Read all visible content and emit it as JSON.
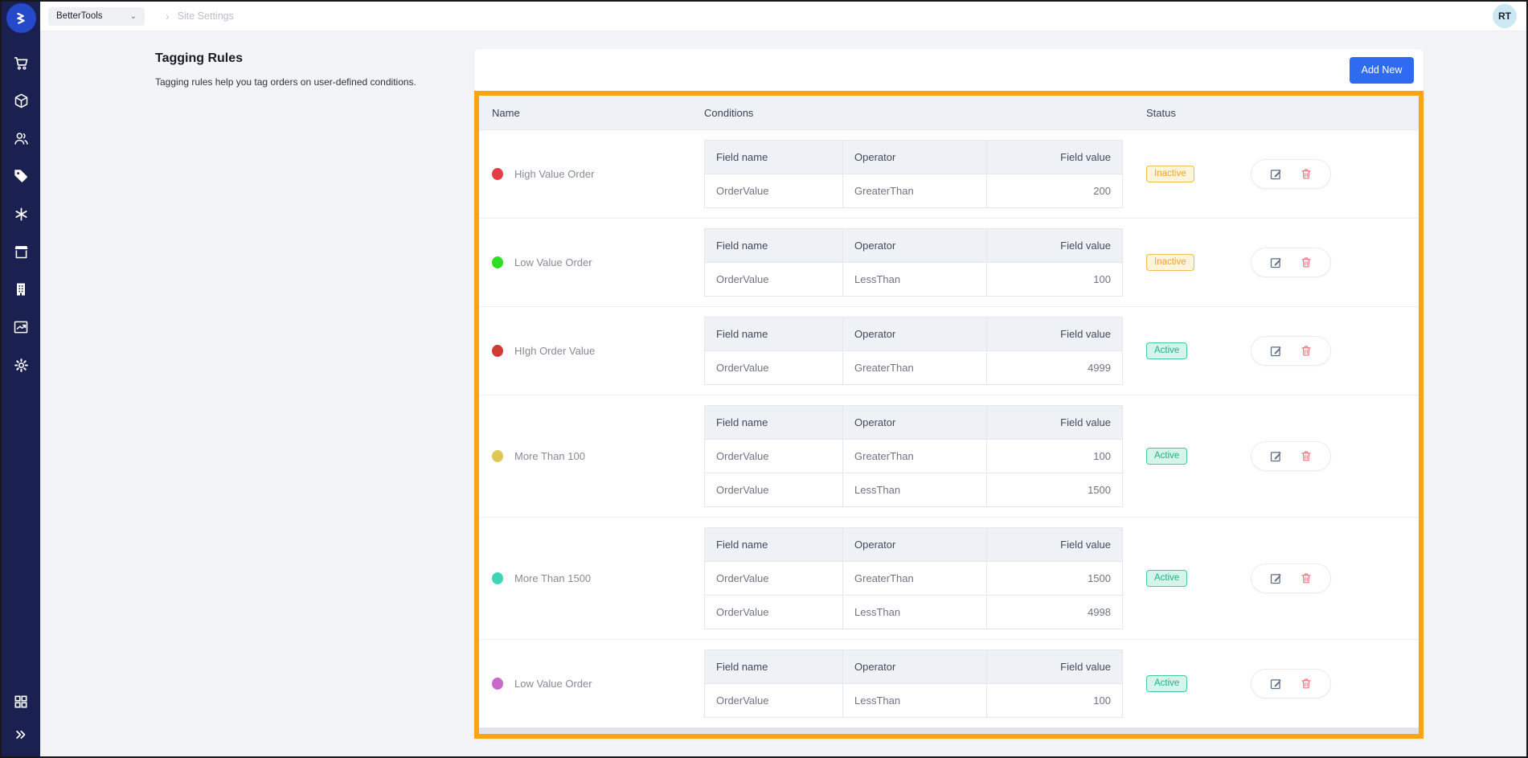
{
  "topbar": {
    "app_switcher_label": "BetterTools",
    "breadcrumb_separator": "›",
    "breadcrumb_label": "Site Settings",
    "avatar_initials": "RT"
  },
  "sidebar": {
    "logo_icon": "zigzag-logo-icon",
    "items": [
      {
        "icon": "cart-icon",
        "active": false
      },
      {
        "icon": "package-icon",
        "active": false
      },
      {
        "icon": "users-icon",
        "active": false
      },
      {
        "icon": "tag-icon",
        "active": true
      },
      {
        "icon": "asterisk-icon",
        "active": false
      },
      {
        "icon": "store-icon",
        "active": false
      },
      {
        "icon": "building-icon",
        "active": false
      },
      {
        "icon": "analytics-icon",
        "active": false
      },
      {
        "icon": "gear-icon",
        "active": false
      }
    ],
    "bottom_items": [
      {
        "icon": "apps-grid-icon"
      },
      {
        "icon": "collapse-chevrons-icon"
      }
    ]
  },
  "page": {
    "title": "Tagging Rules",
    "subtitle": "Tagging rules help you tag orders on user-defined conditions."
  },
  "toolbar": {
    "add_new_label": "Add New"
  },
  "table": {
    "columns": [
      "Name",
      "Conditions",
      "Status"
    ],
    "condition_columns": [
      "Field name",
      "Operator",
      "Field value"
    ],
    "rows": [
      {
        "name": "High Value Order",
        "dot_color": "#e23e44",
        "status": "Inactive",
        "conditions": [
          [
            "OrderValue",
            "GreaterThan",
            "200"
          ]
        ]
      },
      {
        "name": "Low Value Order",
        "dot_color": "#2ede23",
        "status": "Inactive",
        "conditions": [
          [
            "OrderValue",
            "LessThan",
            "100"
          ]
        ]
      },
      {
        "name": "HIgh Order Value",
        "dot_color": "#cf3a33",
        "status": "Active",
        "conditions": [
          [
            "OrderValue",
            "GreaterThan",
            "4999"
          ]
        ]
      },
      {
        "name": "More Than 100",
        "dot_color": "#e0c654",
        "status": "Active",
        "conditions": [
          [
            "OrderValue",
            "GreaterThan",
            "100"
          ],
          [
            "OrderValue",
            "LessThan",
            "1500"
          ]
        ]
      },
      {
        "name": "More Than 1500",
        "dot_color": "#3ed4b6",
        "status": "Active",
        "conditions": [
          [
            "OrderValue",
            "GreaterThan",
            "1500"
          ],
          [
            "OrderValue",
            "LessThan",
            "4998"
          ]
        ]
      },
      {
        "name": "Low Value Order",
        "dot_color": "#c868c9",
        "status": "Active",
        "conditions": [
          [
            "OrderValue",
            "LessThan",
            "100"
          ]
        ]
      }
    ]
  },
  "colors": {
    "highlight_orange": "#f9a411",
    "sidebar_navy": "#1a2050",
    "logo_blue": "#2449c9",
    "add_button_blue": "#2e6bf0",
    "active_badge": "#1cb287",
    "inactive_badge": "#efa32c",
    "delete_icon_pink": "#f0707f"
  }
}
